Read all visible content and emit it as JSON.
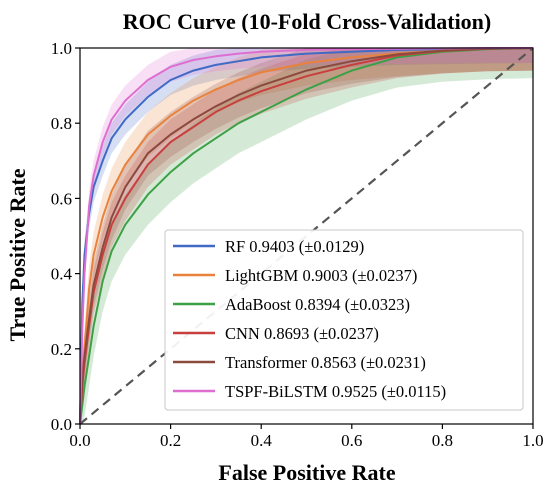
{
  "chart_data": {
    "type": "line",
    "title": "ROC Curve (10-Fold Cross-Validation)",
    "xlabel": "False Positive Rate",
    "ylabel": "True Positive Rate",
    "xlim": [
      0.0,
      1.0
    ],
    "ylim": [
      0.0,
      1.0
    ],
    "x_ticks": [
      0.0,
      0.2,
      0.4,
      0.6,
      0.8,
      1.0
    ],
    "y_ticks": [
      0.0,
      0.2,
      0.4,
      0.6,
      0.8,
      1.0
    ],
    "x_tick_labels": [
      "0.0",
      "0.2",
      "0.4",
      "0.6",
      "0.8",
      "1.0"
    ],
    "y_tick_labels": [
      "0.0",
      "0.2",
      "0.4",
      "0.6",
      "0.8",
      "1.0"
    ],
    "grid": false,
    "legend_position": "lower-right",
    "diagonal": {
      "x": [
        0,
        1
      ],
      "y": [
        0,
        1
      ],
      "style": "dashed",
      "color": "#555555"
    },
    "series": [
      {
        "name": "RF",
        "legend_label": "RF  0.9403 (±0.0129)",
        "color": "#4169C6",
        "band": 0.04,
        "x": [
          0.0,
          0.005,
          0.01,
          0.02,
          0.03,
          0.05,
          0.07,
          0.1,
          0.15,
          0.2,
          0.25,
          0.3,
          0.35,
          0.4,
          0.5,
          0.6,
          0.7,
          0.8,
          0.9,
          1.0
        ],
        "y": [
          0.0,
          0.32,
          0.45,
          0.56,
          0.63,
          0.7,
          0.76,
          0.81,
          0.87,
          0.915,
          0.94,
          0.955,
          0.965,
          0.975,
          0.985,
          0.99,
          0.995,
          0.997,
          0.999,
          1.0
        ]
      },
      {
        "name": "LightGBM",
        "legend_label": "LightGBM  0.9003 (±0.0237)",
        "color": "#E8823C",
        "band": 0.06,
        "x": [
          0.0,
          0.005,
          0.01,
          0.02,
          0.03,
          0.05,
          0.07,
          0.1,
          0.15,
          0.2,
          0.25,
          0.3,
          0.35,
          0.4,
          0.5,
          0.6,
          0.7,
          0.8,
          0.9,
          1.0
        ],
        "y": [
          0.0,
          0.12,
          0.2,
          0.36,
          0.45,
          0.55,
          0.62,
          0.69,
          0.77,
          0.82,
          0.86,
          0.89,
          0.915,
          0.935,
          0.96,
          0.975,
          0.985,
          0.993,
          0.998,
          1.0
        ]
      },
      {
        "name": "AdaBoost",
        "legend_label": "AdaBoost  0.8394 (±0.0323)",
        "color": "#3EA046",
        "band": 0.08,
        "x": [
          0.0,
          0.005,
          0.01,
          0.02,
          0.03,
          0.05,
          0.07,
          0.1,
          0.15,
          0.2,
          0.25,
          0.3,
          0.35,
          0.4,
          0.5,
          0.6,
          0.7,
          0.8,
          0.9,
          1.0
        ],
        "y": [
          0.0,
          0.05,
          0.1,
          0.18,
          0.26,
          0.38,
          0.46,
          0.53,
          0.61,
          0.67,
          0.72,
          0.76,
          0.8,
          0.83,
          0.89,
          0.94,
          0.975,
          0.99,
          0.997,
          1.0
        ]
      },
      {
        "name": "CNN",
        "legend_label": "CNN  0.8693 (±0.0237)",
        "color": "#C8403D",
        "band": 0.06,
        "x": [
          0.0,
          0.005,
          0.01,
          0.02,
          0.03,
          0.05,
          0.07,
          0.1,
          0.15,
          0.2,
          0.25,
          0.3,
          0.35,
          0.4,
          0.5,
          0.6,
          0.7,
          0.8,
          0.9,
          1.0
        ],
        "y": [
          0.0,
          0.1,
          0.16,
          0.26,
          0.35,
          0.45,
          0.53,
          0.6,
          0.69,
          0.75,
          0.79,
          0.83,
          0.86,
          0.885,
          0.925,
          0.955,
          0.98,
          0.992,
          0.998,
          1.0
        ]
      },
      {
        "name": "Transformer",
        "legend_label": "Transformer  0.8563 (±0.0231)",
        "color": "#8B4A3E",
        "band": 0.06,
        "x": [
          0.0,
          0.005,
          0.01,
          0.02,
          0.03,
          0.05,
          0.07,
          0.1,
          0.15,
          0.2,
          0.25,
          0.3,
          0.35,
          0.4,
          0.5,
          0.6,
          0.7,
          0.8,
          0.9,
          1.0
        ],
        "y": [
          0.0,
          0.12,
          0.18,
          0.28,
          0.37,
          0.47,
          0.55,
          0.63,
          0.72,
          0.77,
          0.81,
          0.845,
          0.875,
          0.9,
          0.94,
          0.965,
          0.983,
          0.993,
          0.998,
          1.0
        ]
      },
      {
        "name": "TSPF-BiLSTM",
        "legend_label": "TSPF-BiLSTM  0.9525 (±0.0115)",
        "color": "#DE6FD0",
        "band": 0.04,
        "x": [
          0.0,
          0.005,
          0.01,
          0.02,
          0.03,
          0.05,
          0.07,
          0.1,
          0.15,
          0.2,
          0.25,
          0.3,
          0.35,
          0.4,
          0.5,
          0.6,
          0.7,
          0.8,
          0.9,
          1.0
        ],
        "y": [
          0.0,
          0.25,
          0.4,
          0.58,
          0.66,
          0.75,
          0.81,
          0.86,
          0.915,
          0.95,
          0.968,
          0.978,
          0.985,
          0.99,
          0.995,
          0.997,
          0.998,
          0.999,
          1.0,
          1.0
        ]
      }
    ]
  }
}
